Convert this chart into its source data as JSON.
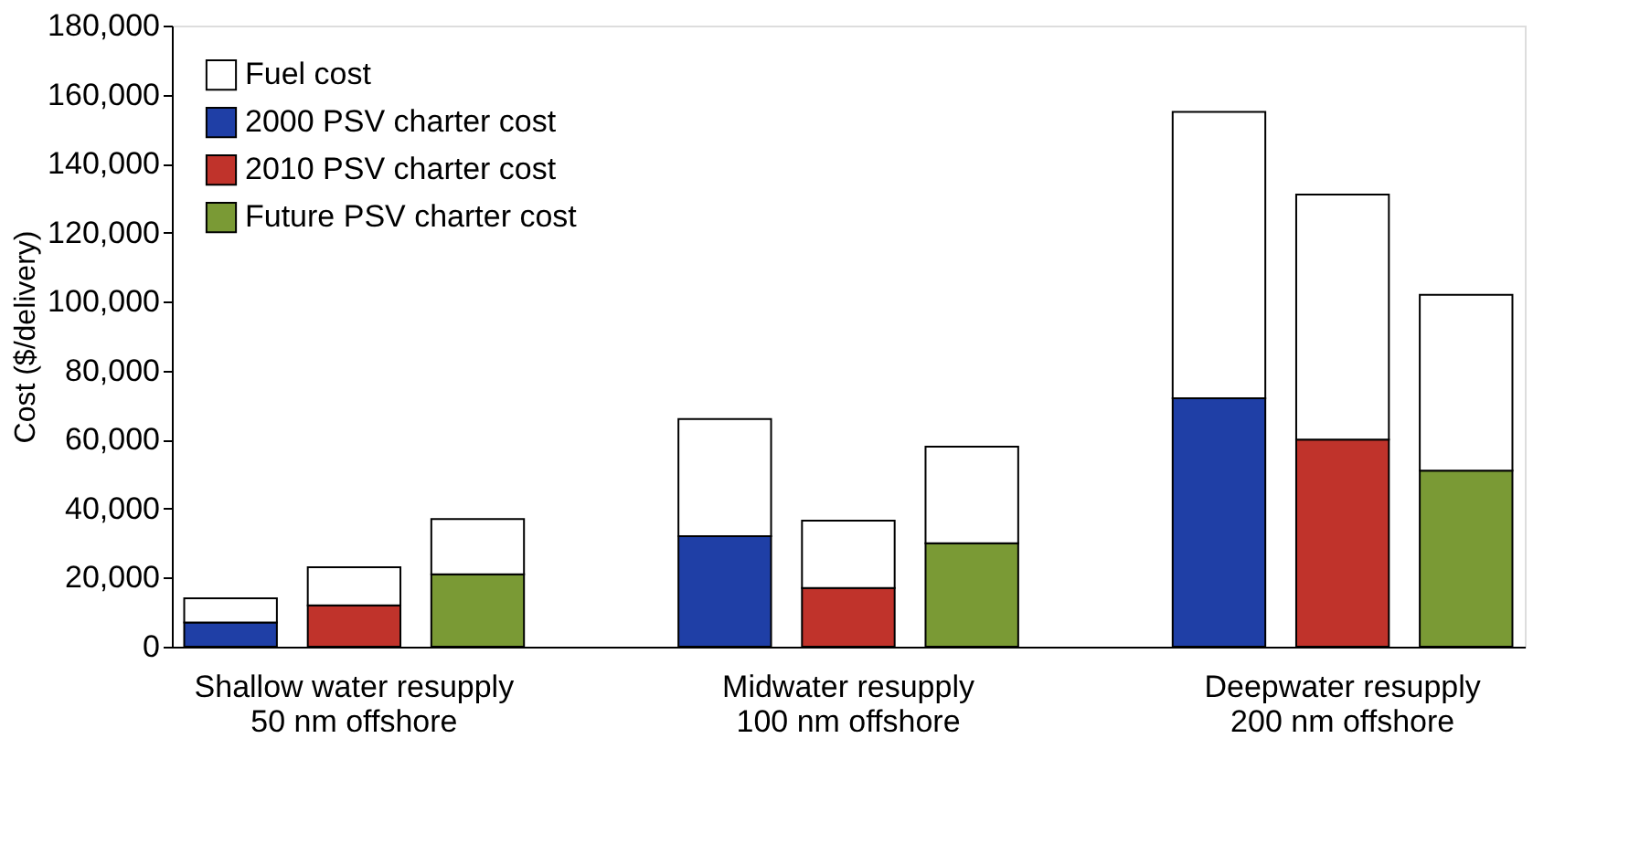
{
  "chart_data": {
    "type": "bar",
    "stacked": true,
    "ylabel": "Cost ($/delivery)",
    "categories": [
      null,
      "Shallow water resupply\n50 nm offshore",
      null,
      null,
      null,
      "Midwater resupply\n100 nm offshore",
      null,
      null,
      null,
      "Deepwater resupply\n200 nm offshore",
      null
    ],
    "series": [
      {
        "name": "2000 PSV charter cost",
        "color": "#1f3fa6",
        "values": [
          7000,
          null,
          null,
          null,
          32000,
          null,
          null,
          null,
          72000,
          null,
          null
        ]
      },
      {
        "name": "2010 PSV charter cost",
        "color": "#c0332b",
        "values": [
          null,
          12000,
          null,
          null,
          null,
          17000,
          null,
          null,
          null,
          60000,
          null
        ]
      },
      {
        "name": "Future PSV charter cost",
        "color": "#7a9a35",
        "values": [
          null,
          null,
          21000,
          null,
          null,
          null,
          30000,
          null,
          null,
          null,
          51000
        ]
      },
      {
        "name": "Fuel cost",
        "color": "#ffffff",
        "values": [
          7000,
          11000,
          16000,
          null,
          34000,
          19500,
          28000,
          null,
          83000,
          71000,
          51000
        ]
      }
    ],
    "ylim": [
      0,
      180000
    ],
    "yticks": [
      0,
      {
        "value": 20000,
        "label": "20,000"
      },
      {
        "value": 40000,
        "label": "40,000"
      },
      {
        "value": 60000,
        "label": "60,000"
      },
      {
        "value": 80000,
        "label": "80,000"
      },
      {
        "value": 100000,
        "label": "100,000"
      },
      {
        "value": 120000,
        "label": "120,000"
      },
      {
        "value": 140000,
        "label": "140,000"
      },
      {
        "value": 160000,
        "label": "160,000"
      },
      {
        "value": 180000,
        "label": "180,000"
      }
    ],
    "grid": false,
    "legend": "top left"
  }
}
